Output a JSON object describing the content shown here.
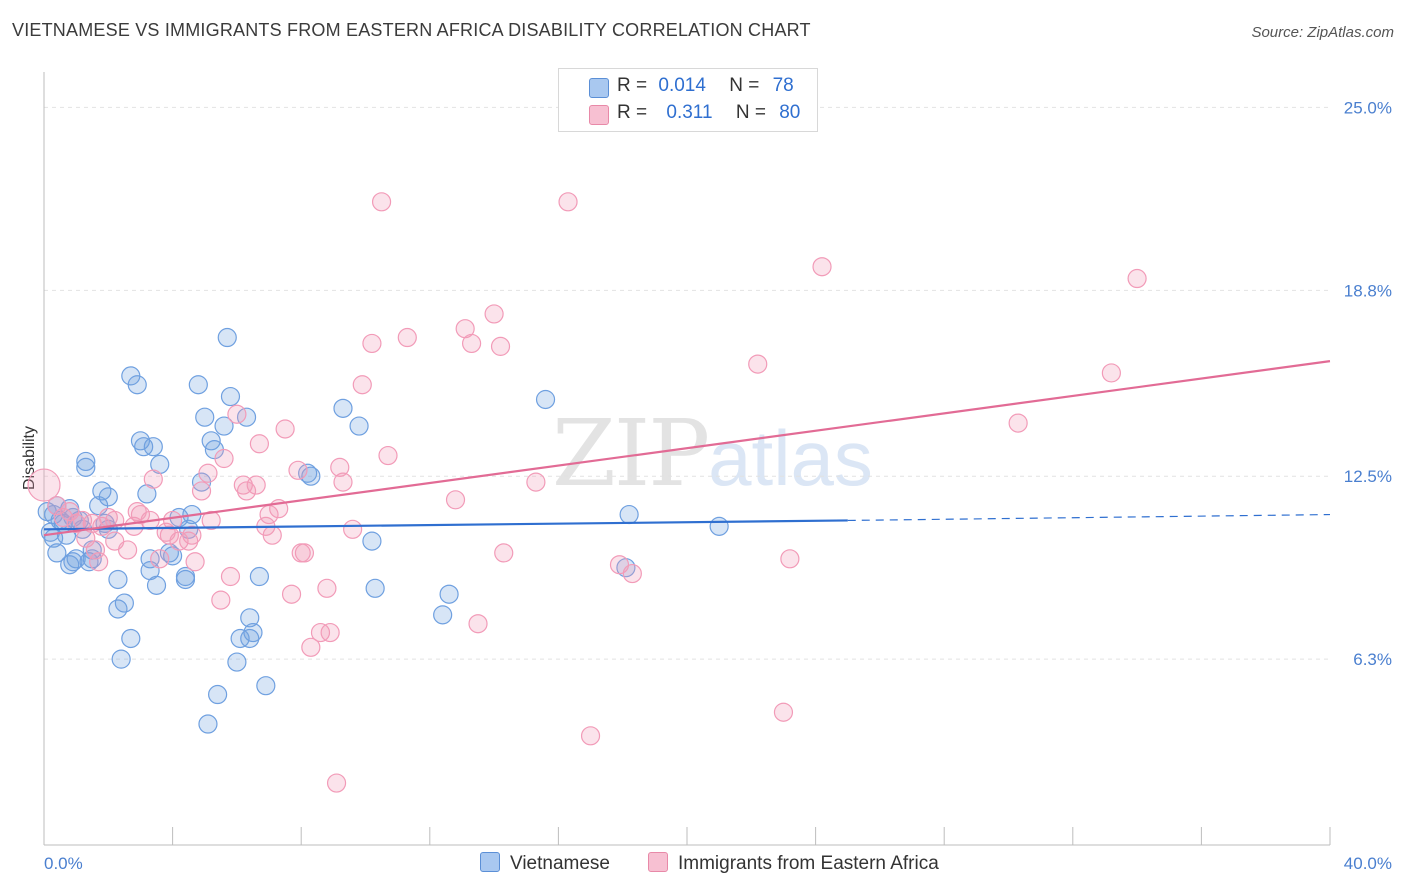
{
  "title": "VIETNAMESE VS IMMIGRANTS FROM EASTERN AFRICA DISABILITY CORRELATION CHART",
  "source": "Source: ZipAtlas.com",
  "watermark": {
    "zip": "ZIP",
    "atlas": "atlas"
  },
  "legend": {
    "rows": [
      {
        "r_label": "R =",
        "r_value": "0.014",
        "n_label": "N =",
        "n_value": "78",
        "color": "#a9c8f0",
        "border": "#5b8fd6"
      },
      {
        "r_label": "R =",
        "r_value": "0.311",
        "n_label": "N =",
        "n_value": "80",
        "color": "#f7c0d2",
        "border": "#e889a8"
      }
    ]
  },
  "bottom_legend": [
    {
      "label": "Vietnamese",
      "color": "#a9c8f0",
      "border": "#5b8fd6"
    },
    {
      "label": "Immigrants from Eastern Africa",
      "color": "#f7c0d2",
      "border": "#e889a8"
    }
  ],
  "chart_data": {
    "type": "scatter",
    "title": "VIETNAMESE VS IMMIGRANTS FROM EASTERN AFRICA DISABILITY CORRELATION CHART",
    "xlabel": "",
    "ylabel": "Disability",
    "xlim": [
      0,
      40
    ],
    "ylim": [
      0,
      26.2
    ],
    "x_tick_labels": [
      "0.0%",
      "40.0%"
    ],
    "y_ticks": [
      {
        "value": 6.3,
        "label": "6.3%"
      },
      {
        "value": 12.5,
        "label": "12.5%"
      },
      {
        "value": 18.8,
        "label": "18.8%"
      },
      {
        "value": 25.0,
        "label": "25.0%"
      }
    ],
    "grid": true,
    "series": [
      {
        "name": "Vietnamese",
        "color": "#6fa0e0",
        "trend": {
          "x0": 0,
          "y0": 10.7,
          "x1": 25,
          "y1": 11.0,
          "dash_to_x": 40,
          "dash_to_y": 11.2,
          "color": "#2f6fd0"
        },
        "points": [
          [
            0.1,
            11.3
          ],
          [
            0.2,
            10.6
          ],
          [
            0.3,
            10.4
          ],
          [
            0.4,
            11.5
          ],
          [
            0.4,
            9.9
          ],
          [
            0.6,
            10.9
          ],
          [
            0.7,
            10.5
          ],
          [
            0.8,
            9.5
          ],
          [
            0.9,
            11.1
          ],
          [
            1.0,
            9.7
          ],
          [
            1.1,
            11.0
          ],
          [
            1.2,
            10.7
          ],
          [
            1.3,
            12.8
          ],
          [
            1.4,
            9.6
          ],
          [
            1.5,
            10.0
          ],
          [
            1.7,
            11.5
          ],
          [
            1.8,
            12.0
          ],
          [
            1.9,
            10.9
          ],
          [
            2.0,
            11.8
          ],
          [
            2.3,
            8.0
          ],
          [
            2.5,
            8.2
          ],
          [
            2.7,
            15.9
          ],
          [
            2.9,
            15.6
          ],
          [
            3.0,
            13.7
          ],
          [
            3.2,
            11.9
          ],
          [
            3.4,
            13.5
          ],
          [
            3.6,
            12.9
          ],
          [
            3.5,
            8.8
          ],
          [
            3.9,
            9.9
          ],
          [
            4.2,
            11.1
          ],
          [
            4.4,
            9.1
          ],
          [
            4.6,
            11.2
          ],
          [
            4.5,
            10.7
          ],
          [
            4.8,
            15.6
          ],
          [
            4.9,
            12.3
          ],
          [
            5.0,
            14.5
          ],
          [
            5.2,
            13.7
          ],
          [
            5.3,
            13.4
          ],
          [
            5.4,
            5.1
          ],
          [
            5.6,
            14.2
          ],
          [
            5.7,
            17.2
          ],
          [
            5.8,
            15.2
          ],
          [
            6.0,
            6.2
          ],
          [
            6.1,
            7.0
          ],
          [
            6.3,
            14.5
          ],
          [
            6.4,
            7.7
          ],
          [
            6.5,
            7.2
          ],
          [
            6.7,
            9.1
          ],
          [
            6.9,
            5.4
          ],
          [
            8.2,
            12.6
          ],
          [
            9.3,
            14.8
          ],
          [
            9.8,
            14.2
          ],
          [
            10.2,
            10.3
          ],
          [
            10.3,
            8.7
          ],
          [
            12.4,
            7.8
          ],
          [
            12.6,
            8.5
          ],
          [
            15.6,
            15.1
          ],
          [
            18.1,
            9.4
          ],
          [
            18.2,
            11.2
          ],
          [
            21.0,
            10.8
          ],
          [
            2.4,
            6.3
          ],
          [
            2.7,
            7.0
          ],
          [
            3.3,
            9.7
          ],
          [
            3.3,
            9.3
          ],
          [
            1.5,
            9.7
          ],
          [
            0.9,
            9.6
          ],
          [
            4.4,
            9.0
          ],
          [
            6.4,
            7.0
          ],
          [
            5.1,
            4.1
          ],
          [
            1.3,
            13.0
          ],
          [
            0.8,
            11.4
          ],
          [
            0.5,
            11.0
          ],
          [
            2.3,
            9.0
          ],
          [
            4.0,
            9.8
          ],
          [
            3.1,
            13.5
          ],
          [
            8.3,
            12.5
          ],
          [
            2.0,
            10.7
          ],
          [
            0.3,
            11.2
          ]
        ]
      },
      {
        "name": "Immigrants from Eastern Africa",
        "color": "#f29bb8",
        "trend": {
          "x0": 0,
          "y0": 10.5,
          "x1": 40,
          "y1": 16.4,
          "color": "#e26b95"
        },
        "points": [
          [
            0.0,
            12.2
          ],
          [
            0.4,
            11.5
          ],
          [
            0.6,
            11.1
          ],
          [
            0.8,
            11.3
          ],
          [
            1.0,
            10.9
          ],
          [
            1.2,
            11.0
          ],
          [
            1.3,
            10.4
          ],
          [
            1.5,
            10.9
          ],
          [
            1.7,
            9.6
          ],
          [
            1.8,
            10.8
          ],
          [
            2.0,
            11.1
          ],
          [
            2.2,
            10.3
          ],
          [
            2.6,
            10.0
          ],
          [
            2.8,
            10.8
          ],
          [
            3.0,
            11.2
          ],
          [
            3.3,
            11.0
          ],
          [
            3.4,
            12.4
          ],
          [
            3.6,
            9.7
          ],
          [
            3.8,
            10.6
          ],
          [
            4.0,
            11.0
          ],
          [
            4.2,
            10.3
          ],
          [
            4.5,
            10.3
          ],
          [
            4.7,
            9.6
          ],
          [
            4.9,
            12.0
          ],
          [
            5.2,
            11.0
          ],
          [
            5.5,
            8.3
          ],
          [
            5.6,
            13.1
          ],
          [
            6.0,
            14.6
          ],
          [
            6.2,
            12.2
          ],
          [
            6.6,
            12.2
          ],
          [
            6.7,
            13.6
          ],
          [
            6.9,
            10.8
          ],
          [
            7.1,
            10.5
          ],
          [
            7.3,
            11.4
          ],
          [
            7.5,
            14.1
          ],
          [
            7.7,
            8.5
          ],
          [
            7.9,
            12.7
          ],
          [
            8.1,
            9.9
          ],
          [
            8.3,
            6.7
          ],
          [
            8.6,
            7.2
          ],
          [
            8.8,
            8.7
          ],
          [
            9.1,
            2.1
          ],
          [
            9.3,
            12.3
          ],
          [
            9.6,
            10.7
          ],
          [
            9.9,
            15.6
          ],
          [
            10.2,
            17.0
          ],
          [
            10.5,
            21.8
          ],
          [
            10.7,
            13.2
          ],
          [
            11.3,
            17.2
          ],
          [
            12.8,
            11.7
          ],
          [
            13.1,
            17.5
          ],
          [
            13.3,
            17.0
          ],
          [
            13.5,
            7.5
          ],
          [
            14.0,
            18.0
          ],
          [
            14.2,
            16.9
          ],
          [
            14.3,
            9.9
          ],
          [
            15.3,
            12.3
          ],
          [
            16.3,
            21.8
          ],
          [
            17.0,
            3.7
          ],
          [
            17.9,
            9.5
          ],
          [
            18.3,
            9.2
          ],
          [
            22.2,
            16.3
          ],
          [
            23.0,
            4.5
          ],
          [
            23.2,
            9.7
          ],
          [
            24.2,
            19.6
          ],
          [
            30.3,
            14.3
          ],
          [
            33.2,
            16.0
          ],
          [
            34.0,
            19.2
          ],
          [
            1.6,
            10.0
          ],
          [
            2.9,
            11.3
          ],
          [
            5.8,
            9.1
          ],
          [
            6.3,
            12.0
          ],
          [
            4.6,
            10.5
          ],
          [
            3.9,
            10.5
          ],
          [
            7.0,
            11.2
          ],
          [
            8.0,
            9.9
          ],
          [
            9.2,
            12.8
          ],
          [
            8.9,
            7.2
          ],
          [
            5.1,
            12.6
          ],
          [
            2.2,
            11.0
          ]
        ]
      }
    ]
  }
}
